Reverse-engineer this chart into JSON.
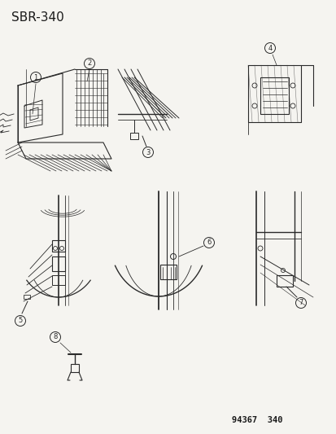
{
  "title": "SBR–340",
  "footer": "94367  340",
  "background_color": "#f5f4f0",
  "text_color": "#1a1a1a",
  "line_color": "#2a2a2a",
  "title_fontsize": 11,
  "footer_fontsize": 7.5,
  "fig_width": 4.14,
  "fig_height": 5.33,
  "dpi": 100
}
